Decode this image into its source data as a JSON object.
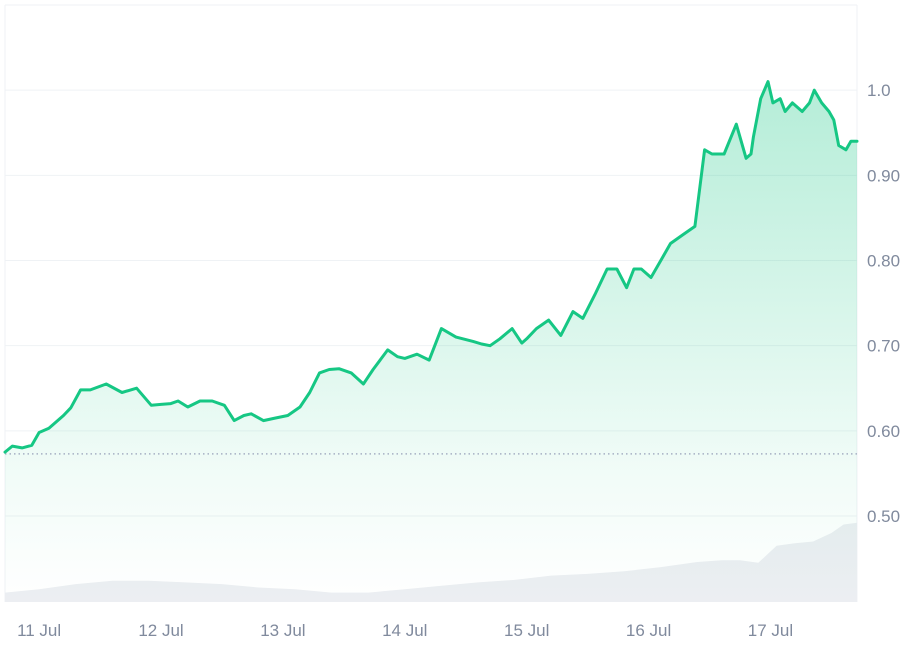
{
  "chart_data": {
    "type": "line",
    "title": "",
    "xlabel": "",
    "ylabel": "",
    "x_ticks": [
      "11 Jul",
      "12 Jul",
      "13 Jul",
      "14 Jul",
      "15 Jul",
      "16 Jul",
      "17 Jul"
    ],
    "x_range_days": [
      10.72,
      17.71
    ],
    "y_ticks": [
      0.5,
      0.6,
      0.7,
      0.8,
      0.9,
      1.0
    ],
    "y_tick_labels": [
      "0.50",
      "0.60",
      "0.70",
      "0.80",
      "0.90",
      "1.0"
    ],
    "ylim": [
      0.399,
      1.1
    ],
    "grid": true,
    "baseline": {
      "value": 0.573,
      "style": "dotted"
    },
    "price_series": {
      "x": [
        10.72,
        10.78,
        10.86,
        10.94,
        11.0,
        11.08,
        11.2,
        11.26,
        11.34,
        11.42,
        11.55,
        11.68,
        11.8,
        11.92,
        12.0,
        12.08,
        12.14,
        12.22,
        12.32,
        12.42,
        12.52,
        12.6,
        12.68,
        12.74,
        12.84,
        12.94,
        13.04,
        13.14,
        13.22,
        13.3,
        13.38,
        13.46,
        13.56,
        13.66,
        13.74,
        13.86,
        13.94,
        14.0,
        14.1,
        14.2,
        14.3,
        14.42,
        14.56,
        14.63,
        14.7,
        14.78,
        14.88,
        14.96,
        15.0,
        15.08,
        15.18,
        15.28,
        15.38,
        15.46,
        15.56,
        15.66,
        15.74,
        15.82,
        15.88,
        15.94,
        16.02,
        16.1,
        16.18,
        16.28,
        16.38,
        16.46,
        16.52,
        16.62,
        16.72,
        16.8,
        16.84,
        16.86,
        16.92,
        16.98,
        17.02,
        17.08,
        17.12,
        17.18,
        17.26,
        17.32,
        17.36,
        17.42,
        17.48,
        17.52,
        17.56,
        17.62,
        17.66,
        17.68,
        17.71
      ],
      "y": [
        0.575,
        0.582,
        0.58,
        0.583,
        0.598,
        0.603,
        0.618,
        0.627,
        0.648,
        0.648,
        0.655,
        0.645,
        0.65,
        0.63,
        0.631,
        0.632,
        0.635,
        0.628,
        0.635,
        0.635,
        0.63,
        0.612,
        0.618,
        0.62,
        0.612,
        0.615,
        0.618,
        0.628,
        0.645,
        0.668,
        0.672,
        0.673,
        0.668,
        0.655,
        0.672,
        0.695,
        0.687,
        0.685,
        0.69,
        0.683,
        0.72,
        0.71,
        0.705,
        0.702,
        0.7,
        0.708,
        0.72,
        0.703,
        0.708,
        0.72,
        0.73,
        0.712,
        0.74,
        0.732,
        0.76,
        0.79,
        0.79,
        0.768,
        0.79,
        0.79,
        0.78,
        0.8,
        0.82,
        0.83,
        0.84,
        0.93,
        0.925,
        0.925,
        0.96,
        0.92,
        0.925,
        0.945,
        0.99,
        1.01,
        0.985,
        0.99,
        0.975,
        0.985,
        0.975,
        0.985,
        1.0,
        0.985,
        0.975,
        0.965,
        0.935,
        0.93,
        0.94,
        0.94,
        0.94
      ]
    },
    "volume_series": {
      "x": [
        10.72,
        11.0,
        11.3,
        11.6,
        11.9,
        12.2,
        12.5,
        12.8,
        13.1,
        13.4,
        13.7,
        14.0,
        14.3,
        14.6,
        14.9,
        15.2,
        15.5,
        15.8,
        16.1,
        16.4,
        16.6,
        16.75,
        16.9,
        17.05,
        17.2,
        17.35,
        17.5,
        17.6,
        17.71
      ],
      "y": [
        0.41,
        0.414,
        0.42,
        0.424,
        0.424,
        0.422,
        0.42,
        0.416,
        0.414,
        0.41,
        0.41,
        0.414,
        0.418,
        0.422,
        0.425,
        0.43,
        0.432,
        0.435,
        0.44,
        0.446,
        0.448,
        0.448,
        0.445,
        0.465,
        0.468,
        0.47,
        0.48,
        0.49,
        0.492
      ]
    },
    "colors": {
      "line": "#16c784",
      "area_top": "#16c784",
      "volume": "#eceef2",
      "grid": "#eff2f5",
      "tick_text": "#808a9d",
      "baseline": "#a6b0c3"
    }
  }
}
